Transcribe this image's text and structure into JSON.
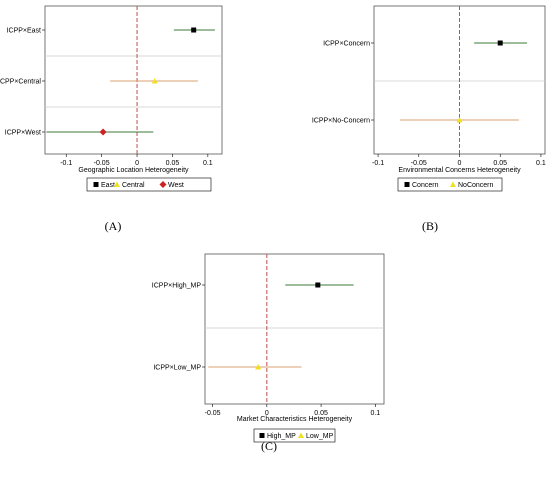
{
  "chart_data": [
    {
      "type": "scatter",
      "panel_label": "(A)",
      "xlabel": "Geographic Location Heterogeneity",
      "xlim": [
        -0.13,
        0.12
      ],
      "xticks": [
        -0.1,
        -0.05,
        0,
        0.05,
        0.1
      ],
      "xtick_labels": [
        "-0.1",
        "-0.05",
        "0",
        "0.05",
        "0.1"
      ],
      "ref_line": 0,
      "legend_position": "bottom",
      "categories": [
        "ICPP×East",
        "ICPP×Central",
        "ICPP×West"
      ],
      "series": [
        {
          "name": "East",
          "estimate": 0.08,
          "ci": [
            0.052,
            0.11
          ],
          "marker": "square",
          "color": "#000000",
          "ci_color": "#3a7a3a"
        },
        {
          "name": "Central",
          "estimate": 0.025,
          "ci": [
            -0.038,
            0.086
          ],
          "marker": "triangle",
          "color": "#f0e020",
          "ci_color": "#d9a070"
        },
        {
          "name": "West",
          "estimate": -0.048,
          "ci": [
            -0.128,
            0.023
          ],
          "marker": "diamond",
          "color": "#cc2222",
          "ci_color": "#3a7a3a"
        }
      ]
    },
    {
      "type": "scatter",
      "panel_label": "(B)",
      "xlabel": "Environmental Concerns Heterogeneity",
      "xlim": [
        -0.105,
        0.105
      ],
      "xticks": [
        -0.1,
        -0.05,
        0,
        0.05,
        0.1
      ],
      "xtick_labels": [
        "-0.1",
        "-0.05",
        "0",
        "0.05",
        "0.1"
      ],
      "ref_line": 0,
      "legend_position": "bottom",
      "categories": [
        "ICPP×Concern",
        "ICPP×No-Concern"
      ],
      "series": [
        {
          "name": "Concern",
          "estimate": 0.05,
          "ci": [
            0.018,
            0.083
          ],
          "marker": "square",
          "color": "#000000",
          "ci_color": "#3a7a3a"
        },
        {
          "name": "NoConcern",
          "estimate": 0.0,
          "ci": [
            -0.073,
            0.073
          ],
          "marker": "triangle",
          "color": "#f0e020",
          "ci_color": "#d9a070"
        }
      ]
    },
    {
      "type": "scatter",
      "panel_label": "(C)",
      "xlabel": "Market Characteristics Heterogeneity",
      "xlim": [
        -0.057,
        0.108
      ],
      "xticks": [
        -0.05,
        0,
        0.05,
        0.1
      ],
      "xtick_labels": [
        "-0.05",
        "0",
        "0.05",
        "0.1"
      ],
      "ref_line": 0,
      "legend_position": "bottom",
      "categories": [
        "ICPP×High_MP",
        "ICPP×Low_MP"
      ],
      "series": [
        {
          "name": "High_MP",
          "estimate": 0.047,
          "ci": [
            0.017,
            0.08
          ],
          "marker": "square",
          "color": "#000000",
          "ci_color": "#3a7a3a"
        },
        {
          "name": "Low_MP",
          "estimate": -0.008,
          "ci": [
            -0.054,
            0.032
          ],
          "marker": "triangle",
          "color": "#f0e020",
          "ci_color": "#d9a070"
        }
      ]
    }
  ]
}
